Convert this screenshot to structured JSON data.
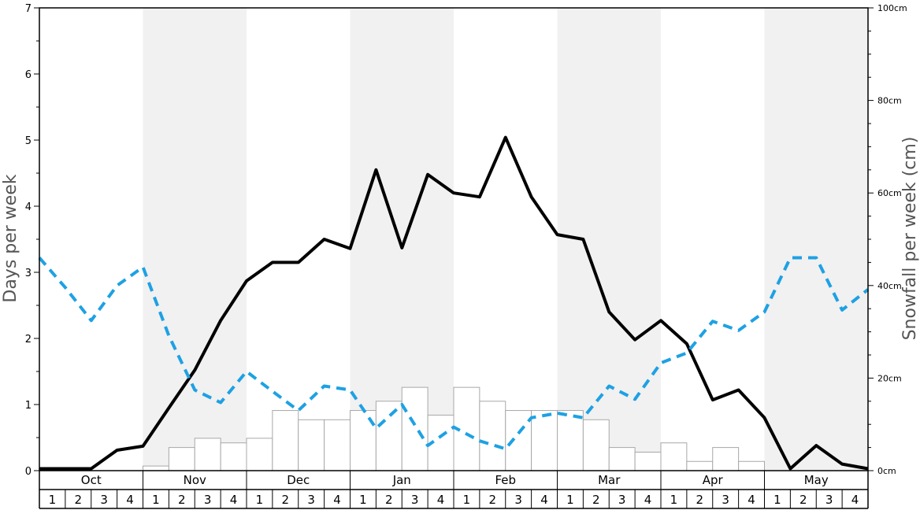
{
  "chart_data": {
    "type": "line",
    "ylabel_left": "Days per week",
    "ylabel_right": "Snowfall per week (cm)",
    "ylim_left": [
      0,
      7
    ],
    "ylim_right": [
      0,
      100
    ],
    "left_ticks": [
      "0",
      "1",
      "2",
      "3",
      "4",
      "5",
      "6",
      "7"
    ],
    "right_ticks": [
      "0cm",
      "20cm",
      "40cm",
      "60cm",
      "80cm",
      "100cm"
    ],
    "months": [
      "Oct",
      "Nov",
      "Dec",
      "Jan",
      "Feb",
      "Mar",
      "Apr",
      "May"
    ],
    "weeks": [
      "1",
      "2",
      "3",
      "4"
    ],
    "shaded_months": [
      "Nov",
      "Jan",
      "Mar",
      "May"
    ],
    "bar_colors": {
      "fill": "#ffffff",
      "stroke": "#a8a8a8"
    },
    "line_colors": {
      "solid": "#000000",
      "dashed": "#1ea1e3"
    },
    "snowfall_cm": [
      0,
      0,
      0,
      0,
      1,
      5,
      7,
      6,
      7,
      13,
      11,
      11,
      13,
      15,
      18,
      12,
      18,
      15,
      13,
      13,
      13,
      11,
      5,
      4,
      6,
      2,
      5,
      2,
      0,
      0,
      0,
      0
    ],
    "series": [
      {
        "style": "solid",
        "values": [
          0.03,
          0.03,
          0.03,
          0.31,
          0.37,
          0.95,
          1.52,
          2.27,
          2.87,
          3.15,
          3.15,
          3.5,
          3.36,
          4.55,
          3.37,
          4.48,
          4.2,
          4.14,
          5.04,
          4.14,
          3.57,
          3.5,
          2.4,
          1.98,
          2.27,
          1.92,
          1.07,
          1.22,
          0.8,
          0.03,
          0.38,
          0.1,
          0.03
        ]
      },
      {
        "style": "dashed",
        "values": [
          3.22,
          2.77,
          2.27,
          2.8,
          3.08,
          2.04,
          1.22,
          1.03,
          1.5,
          1.2,
          0.91,
          1.28,
          1.22,
          0.64,
          1.0,
          0.38,
          0.66,
          0.45,
          0.33,
          0.8,
          0.87,
          0.8,
          1.28,
          1.08,
          1.63,
          1.78,
          2.26,
          2.12,
          2.4,
          3.22,
          3.22,
          2.43,
          2.74
        ]
      }
    ]
  }
}
